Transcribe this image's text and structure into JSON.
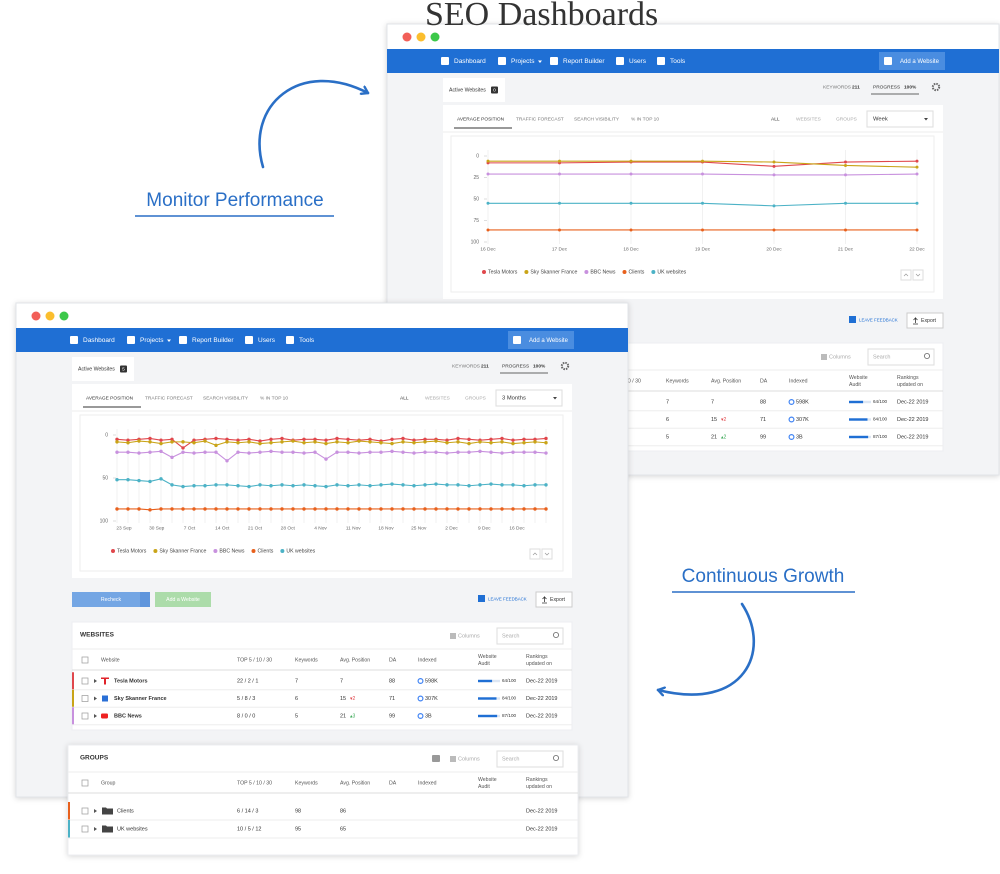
{
  "title": "SEO Dashboards",
  "captions": [
    "Monitor Performance",
    "Continuous Growth"
  ],
  "windows": [
    {
      "nav": [
        "Dashboard",
        "Projects",
        "Report Builder",
        "Users",
        "Tools"
      ],
      "add_website": "Add a Website",
      "tab": "Active Websites",
      "tab_badge": 0,
      "keywords_label": "KEYWORDS",
      "keywords": 211,
      "progress_label": "PROGRESS",
      "progress": "100%",
      "chart_tabs": [
        "AVERAGE POSITION",
        "TRAFFIC FORECAST",
        "SEARCH VISIBILITY",
        "% IN TOP 10"
      ],
      "filters": [
        "ALL",
        "WEBSITES",
        "GROUPS"
      ],
      "period": "Week",
      "chart_data": {
        "type": "line",
        "x": [
          "16 Dec",
          "17 Dec",
          "18 Dec",
          "19 Dec",
          "20 Dec",
          "21 Dec",
          "22 Dec"
        ],
        "ylim": [
          100,
          0
        ],
        "yticks": [
          0,
          25,
          50,
          75,
          100
        ],
        "series": [
          {
            "name": "Tesla Motors",
            "color": "#e0474c",
            "values": [
              8,
              8,
              7,
              7,
              12,
              7,
              6
            ]
          },
          {
            "name": "Sky Skanner France",
            "color": "#c9a418",
            "values": [
              6,
              6,
              6,
              6,
              7,
              11,
              13
            ]
          },
          {
            "name": "BBC News",
            "color": "#c891de",
            "values": [
              21,
              21,
              21,
              21,
              22,
              22,
              21
            ]
          },
          {
            "name": "Clients",
            "color": "#e8601c",
            "values": [
              86,
              86,
              86,
              86,
              86,
              86,
              86
            ]
          },
          {
            "name": "UK websites",
            "color": "#4cb2c6",
            "values": [
              55,
              55,
              55,
              55,
              58,
              55,
              55
            ]
          }
        ]
      },
      "actions": {
        "feedback": "LEAVE FEEDBACK",
        "export": "Export"
      },
      "websites": {
        "columns": "Columns",
        "search": "Search",
        "headers": {
          "top": "10 / 30",
          "keywords": "Keywords",
          "avg_position": "Avg. Position",
          "da": "DA",
          "indexed": "Indexed",
          "audit": [
            "Website",
            "Audit"
          ],
          "updated": [
            "Rankings",
            "updated on"
          ]
        },
        "rows": [
          {
            "keywords": 7,
            "avg_position": 7,
            "da": 88,
            "indexed": "598K",
            "audit": {
              "value": 64,
              "label": "64/100"
            },
            "updated": "Dec-22 2019"
          },
          {
            "keywords": 6,
            "avg_position": 15,
            "change": {
              "value": -2,
              "label": "▾2"
            },
            "da": 71,
            "indexed": "307K",
            "audit": {
              "value": 84,
              "label": "84/100"
            },
            "updated": "Dec-22 2019"
          },
          {
            "keywords": 5,
            "avg_position": 21,
            "change": {
              "value": 2,
              "label": "▴2"
            },
            "da": 99,
            "indexed": "3B",
            "audit": {
              "value": 87,
              "label": "87/100"
            },
            "updated": "Dec-22 2019"
          }
        ]
      }
    },
    {
      "nav": [
        "Dashboard",
        "Projects",
        "Report Builder",
        "Users",
        "Tools"
      ],
      "add_website": "Add a Website",
      "tab": "Active Websites",
      "tab_badge": 5,
      "keywords_label": "KEYWORDS",
      "keywords": 211,
      "progress_label": "PROGRESS",
      "progress": "100%",
      "chart_tabs": [
        "AVERAGE POSITION",
        "TRAFFIC FORECAST",
        "SEARCH VISIBILITY",
        "% IN TOP 10"
      ],
      "filters": [
        "ALL",
        "WEBSITES",
        "GROUPS"
      ],
      "period": "3 Months",
      "chart_data": {
        "type": "line",
        "xticks": [
          "23 Sep",
          "30 Sep",
          "7 Oct",
          "14 Oct",
          "21 Oct",
          "28 Oct",
          "4 Nov",
          "11 Nov",
          "18 Nov",
          "25 Nov",
          "2 Dec",
          "9 Dec",
          "16 Dec"
        ],
        "ylim": [
          100,
          0
        ],
        "yticks": [
          0,
          50,
          100
        ],
        "series": [
          {
            "name": "Tesla Motors",
            "color": "#e0474c",
            "values": [
              5,
              6,
              5,
              4,
              6,
              5,
              15,
              6,
              5,
              4,
              5,
              6,
              5,
              7,
              5,
              4,
              6,
              5,
              5,
              6,
              4,
              5,
              6,
              5,
              7,
              5,
              4,
              6,
              5,
              5,
              6,
              4,
              5,
              6,
              5,
              4,
              6,
              5,
              5,
              4
            ]
          },
          {
            "name": "Sky Skanner France",
            "color": "#c9a418",
            "values": [
              8,
              9,
              7,
              8,
              10,
              8,
              8,
              9,
              7,
              12,
              8,
              9,
              8,
              10,
              9,
              8,
              7,
              9,
              8,
              10,
              8,
              9,
              7,
              8,
              9,
              10,
              8,
              9,
              8,
              7,
              9,
              8,
              10,
              8,
              9,
              8,
              10,
              9,
              8,
              9
            ]
          },
          {
            "name": "BBC News",
            "color": "#c891de",
            "values": [
              20,
              20,
              21,
              20,
              19,
              26,
              20,
              21,
              20,
              20,
              30,
              20,
              21,
              20,
              19,
              20,
              20,
              21,
              20,
              28,
              20,
              20,
              21,
              20,
              20,
              19,
              20,
              21,
              20,
              20,
              21,
              20,
              20,
              19,
              20,
              21,
              20,
              20,
              20,
              21
            ]
          },
          {
            "name": "Clients",
            "color": "#e8601c",
            "values": [
              86,
              86,
              86,
              87,
              86,
              86,
              86,
              86,
              86,
              86,
              86,
              86,
              86,
              86,
              86,
              86,
              86,
              86,
              86,
              86,
              86,
              86,
              86,
              86,
              86,
              86,
              86,
              86,
              86,
              86,
              86,
              86,
              86,
              86,
              86,
              86,
              86,
              86,
              86,
              86
            ]
          },
          {
            "name": "UK websites",
            "color": "#4cb2c6",
            "values": [
              52,
              52,
              53,
              54,
              51,
              58,
              60,
              59,
              59,
              58,
              58,
              59,
              60,
              58,
              59,
              58,
              59,
              58,
              59,
              60,
              58,
              59,
              58,
              59,
              58,
              57,
              58,
              59,
              58,
              57,
              58,
              58,
              59,
              58,
              57,
              58,
              58,
              59,
              58,
              58
            ]
          }
        ]
      },
      "actions": {
        "recheck": "Recheck",
        "add_website": "Add a Website",
        "feedback": "LEAVE FEEDBACK",
        "export": "Export"
      },
      "websites": {
        "title": "WEBSITES",
        "columns": "Columns",
        "search": "Search",
        "headers": {
          "name": "Website",
          "top": "TOP 5 / 10 / 30",
          "keywords": "Keywords",
          "avg_position": "Avg. Position",
          "da": "DA",
          "indexed": "Indexed",
          "audit": [
            "Website",
            "Audit"
          ],
          "updated": [
            "Rankings",
            "updated on"
          ]
        },
        "rows": [
          {
            "color": "#e0474c",
            "name": "Tesla Motors",
            "top": "22 / 2 / 1",
            "keywords": 7,
            "avg_position": 7,
            "da": 88,
            "indexed": "598K",
            "audit": {
              "value": 64,
              "label": "64/100"
            },
            "updated": "Dec-22 2019"
          },
          {
            "color": "#c9a418",
            "name": "Sky Skanner France",
            "top": "5 / 8 / 3",
            "keywords": 6,
            "avg_position": 15,
            "change": {
              "value": -2,
              "label": "▾2"
            },
            "da": 71,
            "indexed": "307K",
            "audit": {
              "value": 84,
              "label": "84/100"
            },
            "updated": "Dec-22 2019"
          },
          {
            "color": "#c891de",
            "name": "BBC News",
            "top": "8 / 0 / 0",
            "keywords": 5,
            "avg_position": 21,
            "change": {
              "value": 3,
              "label": "▴3"
            },
            "da": 99,
            "indexed": "3B",
            "audit": {
              "value": 87,
              "label": "87/100"
            },
            "updated": "Dec-22 2019"
          }
        ]
      },
      "groups": {
        "title": "GROUPS",
        "columns": "Columns",
        "search": "Search",
        "headers": {
          "name": "Group",
          "top": "TOP 5 / 10 / 30",
          "keywords": "Keywords",
          "avg_position": "Avg. Position",
          "da": "DA",
          "indexed": "Indexed",
          "audit": [
            "Website",
            "Audit"
          ],
          "updated": [
            "Rankings",
            "updated on"
          ]
        },
        "rows": [
          {
            "color": "#e8601c",
            "name": "Clients",
            "top": "6 / 14 / 3",
            "keywords": 98,
            "avg_position": 86,
            "updated": "Dec-22 2019"
          },
          {
            "color": "#4cb2c6",
            "name": "UK websites",
            "top": "10 / 5 / 12",
            "keywords": 95,
            "avg_position": 65,
            "updated": "Dec-22 2019"
          }
        ]
      }
    }
  ]
}
